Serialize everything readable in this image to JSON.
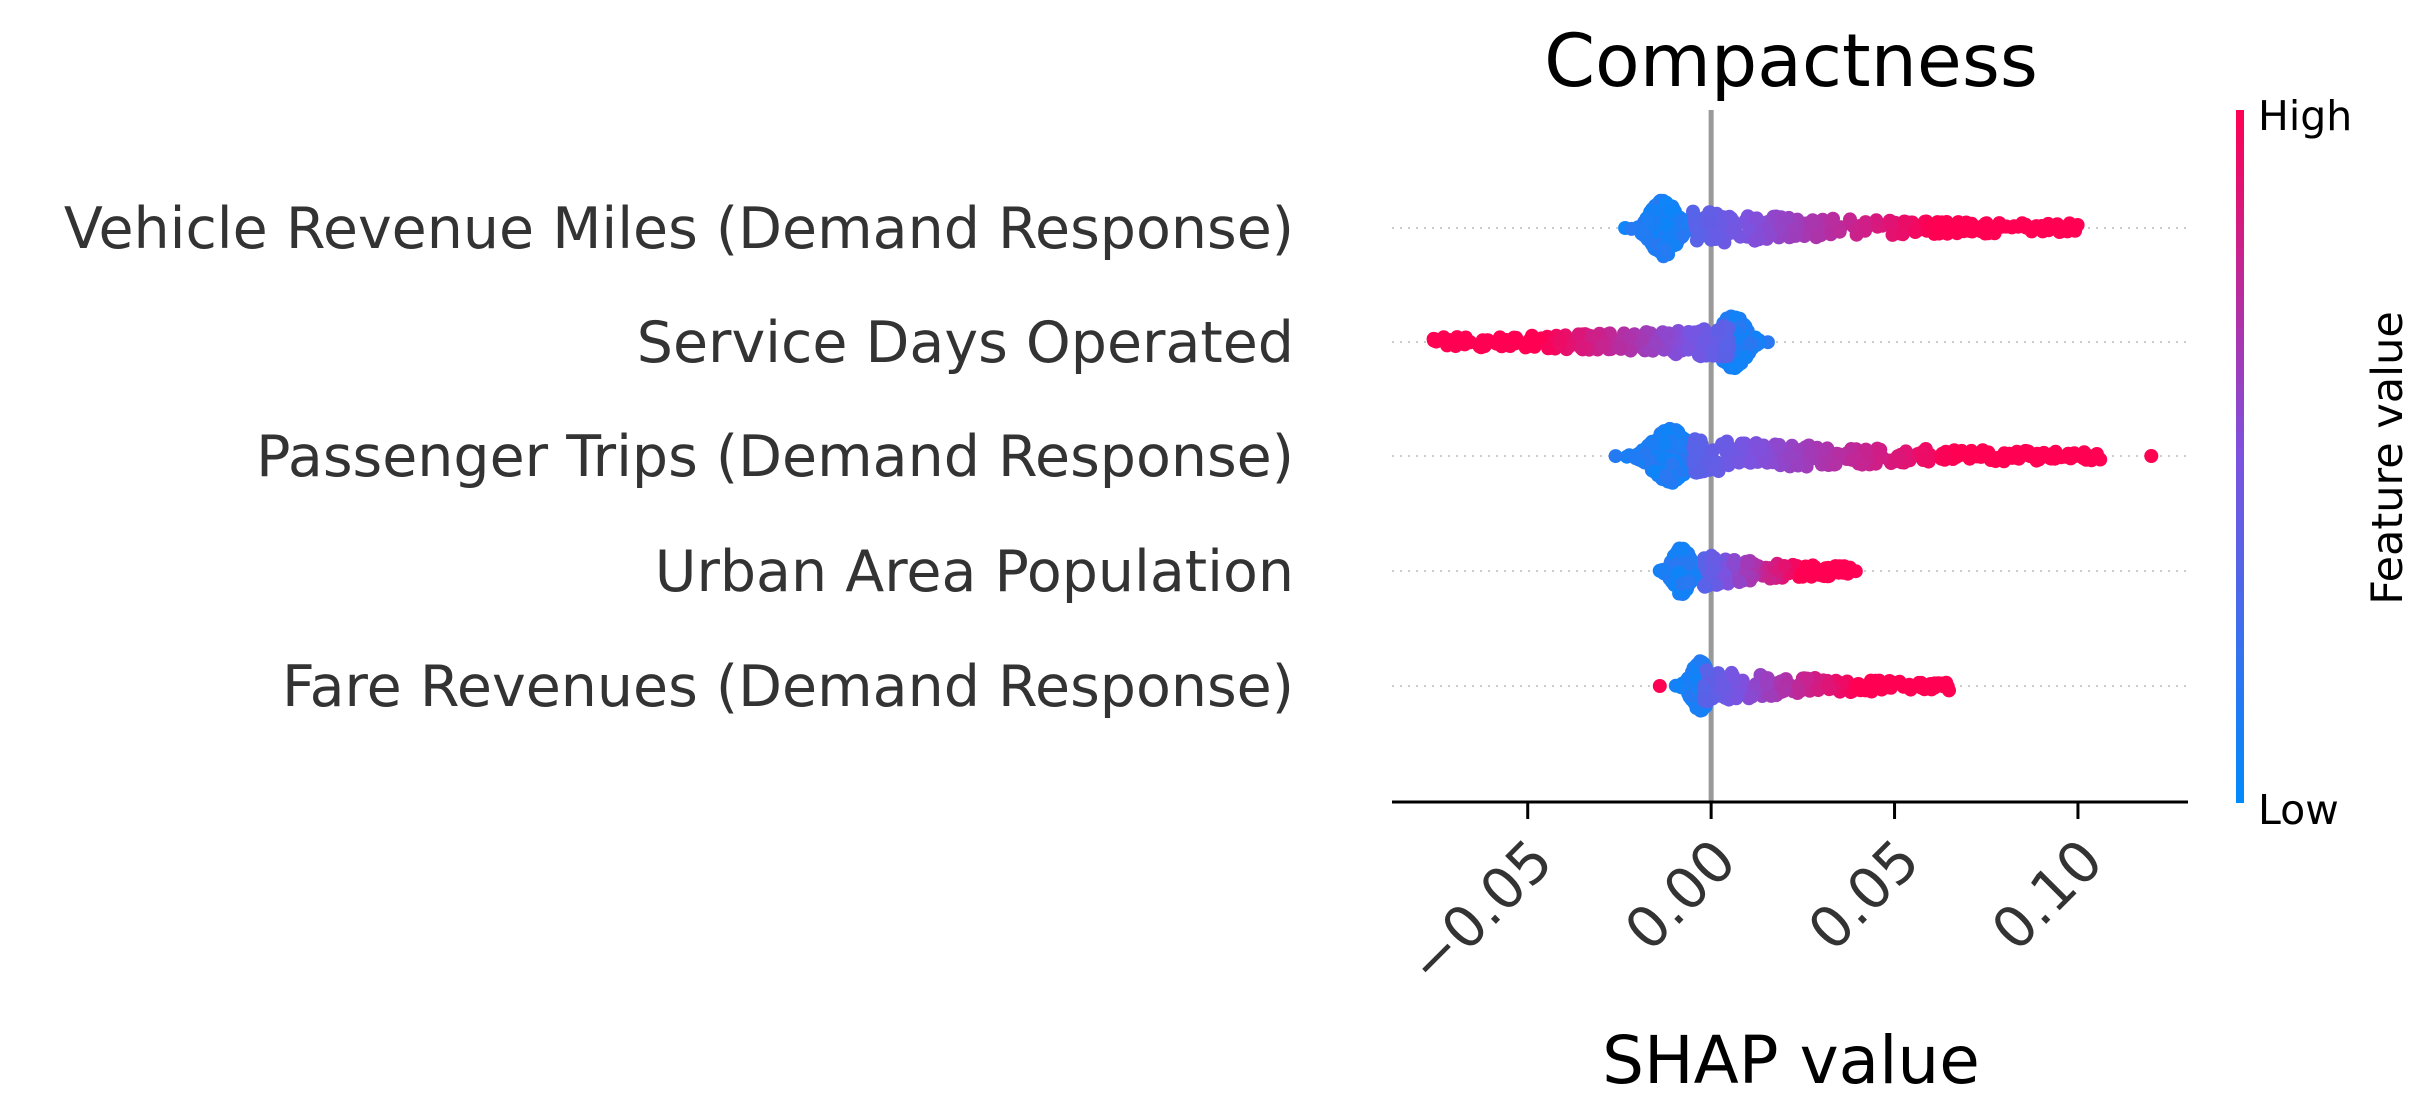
{
  "chart_data": {
    "type": "scatter",
    "subtype": "shap-beeswarm",
    "title": "Compactness",
    "xlabel": "SHAP value",
    "xlim": [
      -0.087,
      0.13
    ],
    "xticks": [
      "−0.05",
      "0.00",
      "0.05",
      "0.10"
    ],
    "xtick_values": [
      -0.05,
      0.0,
      0.05,
      0.1
    ],
    "tick_rotation": -45,
    "zero_line": true,
    "colorbar": {
      "title": "Feature value",
      "high_label": "High",
      "low_label": "Low",
      "low_color": "#008bfb",
      "mid_color": "#7c52e0",
      "high_color": "#ff0052"
    },
    "features": [
      {
        "name": "Vehicle Revenue Miles (Demand Response)",
        "low_cluster": {
          "center": -0.013,
          "spread": 0.003,
          "count": 320,
          "max_height": 0.5
        },
        "high_tail": {
          "start": -0.005,
          "end": 0.1,
          "count": 230
        },
        "min": -0.015,
        "max": 0.1
      },
      {
        "name": "Service Days Operated",
        "low_cluster": {
          "center": 0.006,
          "spread": 0.003,
          "count": 260,
          "max_height": 0.47
        },
        "high_tail": {
          "start": -0.078,
          "end": 0.005,
          "count": 230,
          "reverse": true
        },
        "min": -0.078,
        "max": 0.024
      },
      {
        "name": "Passenger Trips (Demand Response)",
        "low_cluster": {
          "center": -0.011,
          "spread": 0.004,
          "count": 340,
          "max_height": 0.48
        },
        "high_tail": {
          "start": -0.005,
          "end": 0.108,
          "count": 240
        },
        "outlier": 0.12,
        "min": -0.016,
        "max": 0.12
      },
      {
        "name": "Urban Area Population",
        "low_cluster": {
          "center": -0.008,
          "spread": 0.002,
          "count": 220,
          "max_height": 0.42
        },
        "high_tail": {
          "start": -0.002,
          "end": 0.04,
          "count": 120
        },
        "min": -0.012,
        "max": 0.04
      },
      {
        "name": "Fare Revenues (Demand Response)",
        "low_cluster": {
          "center": -0.003,
          "spread": 0.002,
          "count": 240,
          "max_height": 0.45
        },
        "high_tail": {
          "start": -0.002,
          "end": 0.065,
          "count": 170
        },
        "outlier": -0.014,
        "min": -0.014,
        "max": 0.065
      }
    ]
  }
}
